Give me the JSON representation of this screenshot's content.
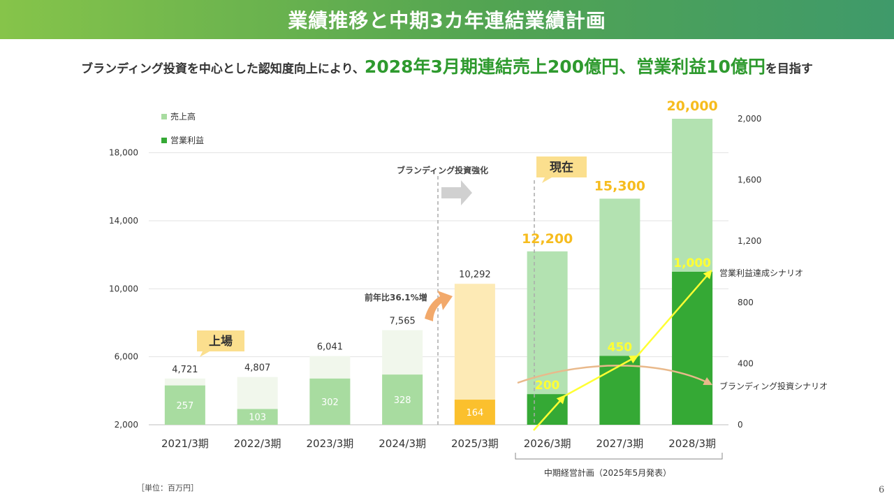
{
  "header": {
    "title": "業績推移と中期3カ年連結業績計画"
  },
  "subtitle": {
    "prefix": "ブランディング投資を中心とした認知度向上により、",
    "highlight": "2028年3月期連結売上200億円、営業利益10億円",
    "suffix": "を目指す"
  },
  "chart_data": {
    "type": "bar",
    "categories": [
      "2021/3期",
      "2022/3期",
      "2023/3期",
      "2024/3期",
      "2025/3期",
      "2026/3期",
      "2027/3期",
      "2028/3期"
    ],
    "series": [
      {
        "name": "売上高",
        "axis": "left",
        "values": [
          4721,
          4807,
          6041,
          7565,
          10292,
          12200,
          15300,
          20000
        ],
        "labels": [
          "4,721",
          "4,807",
          "6,041",
          "7,565",
          "10,292",
          "12,200",
          "15,300",
          "20,000"
        ]
      },
      {
        "name": "営業利益",
        "axis": "right",
        "values": [
          257,
          103,
          302,
          328,
          164,
          200,
          450,
          1000
        ],
        "labels": [
          "257",
          "103",
          "302",
          "328",
          "164",
          "200",
          "450",
          "1,000"
        ]
      }
    ],
    "left_axis": {
      "min": 2000,
      "max": 20000,
      "ticks": [
        2000,
        6000,
        10000,
        14000,
        18000
      ],
      "tick_labels": [
        "2,000",
        "6,000",
        "10,000",
        "14,000",
        "18,000"
      ]
    },
    "right_axis": {
      "min": 0,
      "max": 2000,
      "ticks": [
        0,
        400,
        800,
        1200,
        1600,
        2000
      ],
      "tick_labels": [
        "0",
        "400",
        "800",
        "1,200",
        "1,600",
        "2,000"
      ]
    },
    "legend": {
      "position": "top-left",
      "entries": [
        "売上高",
        "営業利益"
      ]
    },
    "grid": true,
    "annotations": {
      "listing": "上場",
      "yoy": "前年比36.1%増",
      "branding_invest": "ブランディング投資強化",
      "current": "現在",
      "scenario_profit": "営業利益達成シナリオ",
      "scenario_branding": "ブランディング投資シナリオ",
      "plan_bracket": "中期経営計画（2025年5月発表）"
    },
    "unit": "［単位：百万円］"
  },
  "colors": {
    "sales_past": "#f1f7ec",
    "profit_past": "#a8dca0",
    "sales_2025": "#fdeab5",
    "profit_2025": "#fbc02d",
    "sales_plan": "#b3e2b1",
    "profit_plan": "#35a935",
    "highlight_text": "#f6bc1e",
    "scenario_arrow": "#ffff33",
    "branding_arrow": "#e9b98b"
  },
  "page_number": "6"
}
